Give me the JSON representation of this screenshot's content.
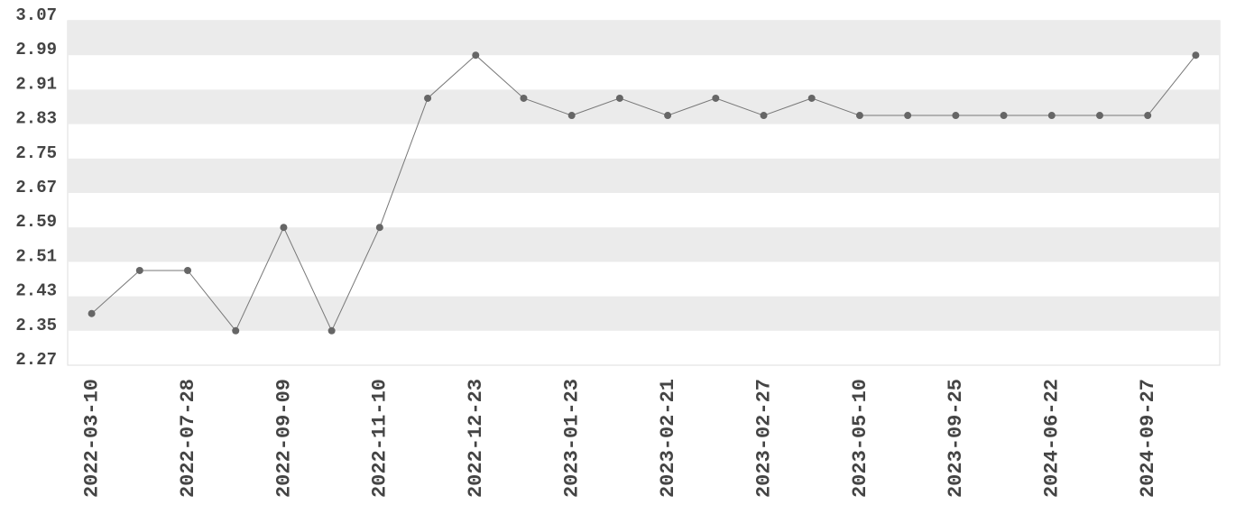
{
  "chart_data": {
    "type": "line",
    "categories": [
      "2022-03-10",
      null,
      "2022-07-28",
      null,
      "2022-09-09",
      null,
      "2022-11-10",
      null,
      "2022-12-23",
      null,
      "2023-01-23",
      null,
      "2023-02-21",
      null,
      "2023-02-27",
      null,
      "2023-05-10",
      null,
      "2023-09-25",
      null,
      "2024-06-22",
      null,
      "2024-09-27",
      null
    ],
    "values": [
      2.39,
      2.49,
      2.49,
      2.35,
      2.59,
      2.35,
      2.59,
      2.89,
      2.99,
      2.89,
      2.85,
      2.89,
      2.85,
      2.89,
      2.85,
      2.89,
      2.85,
      2.85,
      2.85,
      2.85,
      2.85,
      2.85,
      2.85,
      2.99
    ],
    "color": "#777777",
    "ylim": [
      2.27,
      3.07
    ],
    "yticks": [
      2.27,
      2.35,
      2.43,
      2.51,
      2.59,
      2.67,
      2.75,
      2.83,
      2.91,
      2.99,
      3.07
    ],
    "grid": true
  }
}
